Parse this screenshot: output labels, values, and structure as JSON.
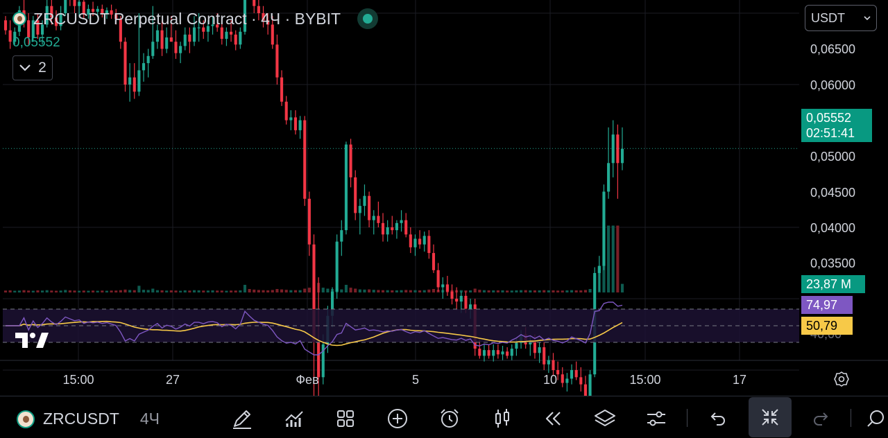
{
  "header": {
    "title": "ZRCUSDT Perpetual Contract · 4Ч · BYBIT",
    "last_price": "0,05552",
    "indicators_count": "2"
  },
  "currency_select": {
    "value": "USDT"
  },
  "price_axis": {
    "labels": [
      "0,06500",
      "0,06000",
      "0,05000",
      "0,04500",
      "0,04000",
      "0,03500"
    ],
    "current_price": "0,05552",
    "countdown": "02:51:41",
    "volume": "23,87 M",
    "rsi_value": "74,97",
    "rsi_ma_value": "50,79",
    "rsi_hidden_label": "40,00"
  },
  "time_axis": {
    "labels": [
      "15:00",
      "27",
      "Фев",
      "5",
      "10",
      "15:00",
      "17"
    ]
  },
  "bottom_bar": {
    "symbol": "ZRCUSDT",
    "timeframe": "4Ч",
    "tools": [
      "drawing-tool",
      "indicators",
      "layouts",
      "add",
      "alert",
      "bar-style",
      "replay",
      "layers",
      "settings",
      "undo",
      "fullscreen-exit",
      "redo"
    ]
  },
  "colors": {
    "up": "#22ab94",
    "down": "#f23645",
    "rsi": "#7e57c2",
    "rsi_ma": "#f7c948",
    "rsi_band": "#1c1233"
  },
  "chart_data": {
    "type": "candlestick",
    "timeframe": "4Ч",
    "price_ticks": [
      0.065,
      0.06,
      0.05,
      0.045,
      0.04,
      0.035
    ],
    "current_price": 0.05552,
    "candles": [
      [
        0.0645,
        0.0648,
        0.0635,
        0.0638
      ],
      [
        0.0638,
        0.0645,
        0.0625,
        0.063
      ],
      [
        0.063,
        0.064,
        0.0628,
        0.0637
      ],
      [
        0.0637,
        0.0655,
        0.0634,
        0.0652
      ],
      [
        0.0652,
        0.0662,
        0.064,
        0.0645
      ],
      [
        0.0645,
        0.065,
        0.0628,
        0.0633
      ],
      [
        0.0633,
        0.0648,
        0.063,
        0.0645
      ],
      [
        0.0645,
        0.065,
        0.0632,
        0.0635
      ],
      [
        0.0635,
        0.0645,
        0.0628,
        0.0642
      ],
      [
        0.0642,
        0.066,
        0.064,
        0.0655
      ],
      [
        0.0655,
        0.0662,
        0.0642,
        0.0647
      ],
      [
        0.0647,
        0.0652,
        0.0638,
        0.0641
      ],
      [
        0.0641,
        0.0655,
        0.0638,
        0.065
      ],
      [
        0.065,
        0.067,
        0.0648,
        0.0665
      ],
      [
        0.0665,
        0.0672,
        0.0655,
        0.066
      ],
      [
        0.066,
        0.0665,
        0.065,
        0.0655
      ],
      [
        0.0655,
        0.0662,
        0.0648,
        0.0658
      ],
      [
        0.0658,
        0.066,
        0.0646,
        0.0649
      ],
      [
        0.0649,
        0.0656,
        0.0646,
        0.0653
      ],
      [
        0.0653,
        0.0658,
        0.0648,
        0.0651
      ],
      [
        0.0651,
        0.0655,
        0.0647,
        0.0653
      ],
      [
        0.0653,
        0.0656,
        0.0647,
        0.065
      ],
      [
        0.065,
        0.0654,
        0.0646,
        0.0652
      ],
      [
        0.0652,
        0.0656,
        0.0646,
        0.0649
      ],
      [
        0.0649,
        0.0653,
        0.0642,
        0.0646
      ],
      [
        0.0646,
        0.0648,
        0.0625,
        0.063
      ],
      [
        0.063,
        0.0633,
        0.0595,
        0.06
      ],
      [
        0.06,
        0.0615,
        0.0588,
        0.0605
      ],
      [
        0.0605,
        0.0615,
        0.059,
        0.0595
      ],
      [
        0.0595,
        0.065,
        0.0592,
        0.061
      ],
      [
        0.061,
        0.0622,
        0.0602,
        0.0615
      ],
      [
        0.0615,
        0.0625,
        0.0605,
        0.062
      ],
      [
        0.062,
        0.0655,
        0.0618,
        0.063
      ],
      [
        0.063,
        0.0642,
        0.0625,
        0.0638
      ],
      [
        0.0638,
        0.0645,
        0.062,
        0.0625
      ],
      [
        0.0625,
        0.064,
        0.0622,
        0.0633
      ],
      [
        0.0633,
        0.0648,
        0.063,
        0.063
      ],
      [
        0.063,
        0.0638,
        0.0618,
        0.0622
      ],
      [
        0.0622,
        0.063,
        0.0615,
        0.0627
      ],
      [
        0.0627,
        0.064,
        0.0624,
        0.0635
      ],
      [
        0.0635,
        0.064,
        0.0622,
        0.063
      ],
      [
        0.063,
        0.0648,
        0.0627,
        0.064
      ],
      [
        0.064,
        0.065,
        0.063,
        0.064
      ],
      [
        0.064,
        0.0645,
        0.0632,
        0.0637
      ],
      [
        0.0637,
        0.0645,
        0.063,
        0.0641
      ],
      [
        0.0641,
        0.0648,
        0.0635,
        0.0642
      ],
      [
        0.0642,
        0.065,
        0.0637,
        0.064
      ],
      [
        0.064,
        0.0645,
        0.0628,
        0.0632
      ],
      [
        0.0632,
        0.064,
        0.0627,
        0.0637
      ],
      [
        0.0637,
        0.0645,
        0.063,
        0.0635
      ],
      [
        0.0635,
        0.0638,
        0.0624,
        0.0628
      ],
      [
        0.0628,
        0.064,
        0.0625,
        0.0637
      ],
      [
        0.0637,
        0.0682,
        0.0635,
        0.0675
      ],
      [
        0.0675,
        0.0678,
        0.066,
        0.0665
      ],
      [
        0.0665,
        0.0668,
        0.065,
        0.0655
      ],
      [
        0.0655,
        0.066,
        0.0645,
        0.065
      ],
      [
        0.065,
        0.0655,
        0.064,
        0.0645
      ],
      [
        0.0645,
        0.065,
        0.0635,
        0.0642
      ],
      [
        0.0642,
        0.0648,
        0.0625,
        0.0628
      ],
      [
        0.0628,
        0.0635,
        0.06,
        0.0605
      ],
      [
        0.0605,
        0.061,
        0.0585,
        0.0588
      ],
      [
        0.0588,
        0.0592,
        0.0572,
        0.0575
      ],
      [
        0.0575,
        0.0582,
        0.0568,
        0.0577
      ],
      [
        0.0577,
        0.0582,
        0.0565,
        0.0568
      ],
      [
        0.0568,
        0.0578,
        0.0562,
        0.0575
      ],
      [
        0.0575,
        0.0578,
        0.0515,
        0.052
      ],
      [
        0.052,
        0.0525,
        0.048,
        0.0488
      ],
      [
        0.0488,
        0.0495,
        0.038,
        0.042
      ],
      [
        0.042,
        0.0465,
        0.038,
        0.0395
      ],
      [
        0.0395,
        0.0425,
        0.039,
        0.0418
      ],
      [
        0.0418,
        0.0445,
        0.0412,
        0.0438
      ],
      [
        0.0438,
        0.0458,
        0.043,
        0.0455
      ],
      [
        0.0455,
        0.0495,
        0.045,
        0.049
      ],
      [
        0.049,
        0.0505,
        0.048,
        0.0498
      ],
      [
        0.0498,
        0.056,
        0.0495,
        0.0558
      ],
      [
        0.0558,
        0.0562,
        0.0528,
        0.0535
      ],
      [
        0.0535,
        0.054,
        0.0505,
        0.051
      ],
      [
        0.051,
        0.052,
        0.0495,
        0.0515
      ],
      [
        0.0515,
        0.053,
        0.0508,
        0.0522
      ],
      [
        0.0522,
        0.0525,
        0.05,
        0.0505
      ],
      [
        0.0505,
        0.0512,
        0.0495,
        0.0508
      ],
      [
        0.0508,
        0.0518,
        0.05,
        0.0503
      ],
      [
        0.0503,
        0.051,
        0.049,
        0.0495
      ],
      [
        0.0495,
        0.0505,
        0.049,
        0.05
      ],
      [
        0.05,
        0.0508,
        0.0495,
        0.0498
      ],
      [
        0.0498,
        0.0505,
        0.0492,
        0.0503
      ],
      [
        0.0503,
        0.0512,
        0.0497,
        0.0505
      ],
      [
        0.0505,
        0.051,
        0.0493,
        0.0495
      ],
      [
        0.0495,
        0.05,
        0.0482,
        0.0486
      ],
      [
        0.0486,
        0.0495,
        0.048,
        0.0492
      ],
      [
        0.0492,
        0.0498,
        0.0485,
        0.0488
      ],
      [
        0.0488,
        0.0497,
        0.0483,
        0.0494
      ],
      [
        0.0494,
        0.0498,
        0.0478,
        0.0482
      ],
      [
        0.0482,
        0.0488,
        0.0468,
        0.047
      ],
      [
        0.047,
        0.0475,
        0.0455,
        0.0458
      ],
      [
        0.0458,
        0.0465,
        0.045,
        0.046
      ],
      [
        0.046,
        0.0466,
        0.0452,
        0.0455
      ],
      [
        0.0455,
        0.046,
        0.0446,
        0.045
      ],
      [
        0.045,
        0.0458,
        0.0442,
        0.0448
      ],
      [
        0.0448,
        0.0455,
        0.044,
        0.0452
      ],
      [
        0.0452,
        0.0455,
        0.044,
        0.0443
      ],
      [
        0.0443,
        0.045,
        0.0436,
        0.0446
      ],
      [
        0.0446,
        0.045,
        0.041,
        0.0415
      ],
      [
        0.0415,
        0.0422,
        0.0408,
        0.041
      ],
      [
        0.041,
        0.0418,
        0.0406,
        0.0414
      ],
      [
        0.0414,
        0.0418,
        0.0408,
        0.041
      ],
      [
        0.041,
        0.0418,
        0.0406,
        0.0414
      ],
      [
        0.0414,
        0.0418,
        0.0408,
        0.0411
      ],
      [
        0.0411,
        0.0417,
        0.0407,
        0.0413
      ],
      [
        0.0413,
        0.0416,
        0.0408,
        0.041
      ],
      [
        0.041,
        0.0418,
        0.0407,
        0.0415
      ],
      [
        0.0415,
        0.0422,
        0.041,
        0.0419
      ],
      [
        0.0419,
        0.0428,
        0.0415,
        0.0425
      ],
      [
        0.0425,
        0.043,
        0.0415,
        0.0418
      ],
      [
        0.0418,
        0.0424,
        0.041,
        0.042
      ],
      [
        0.042,
        0.0425,
        0.0408,
        0.0412
      ],
      [
        0.0412,
        0.042,
        0.0405,
        0.0416
      ],
      [
        0.0416,
        0.042,
        0.04,
        0.0404
      ],
      [
        0.0404,
        0.041,
        0.0398,
        0.0407
      ],
      [
        0.0407,
        0.0412,
        0.0396,
        0.04
      ],
      [
        0.04,
        0.0406,
        0.0393,
        0.0397
      ],
      [
        0.0397,
        0.0402,
        0.0388,
        0.0391
      ],
      [
        0.0391,
        0.0398,
        0.0385,
        0.0394
      ],
      [
        0.0394,
        0.0404,
        0.039,
        0.04
      ],
      [
        0.04,
        0.0406,
        0.0393,
        0.0395
      ],
      [
        0.0395,
        0.0402,
        0.0385,
        0.039
      ],
      [
        0.039,
        0.0396,
        0.0375,
        0.0382
      ],
      [
        0.0382,
        0.04,
        0.038,
        0.0397
      ],
      [
        0.0397,
        0.0472,
        0.0395,
        0.0468
      ],
      [
        0.0468,
        0.048,
        0.0455,
        0.0473
      ],
      [
        0.0473,
        0.053,
        0.047,
        0.0525
      ],
      [
        0.0525,
        0.057,
        0.052,
        0.0545
      ],
      [
        0.0545,
        0.0575,
        0.0535,
        0.0565
      ],
      [
        0.0565,
        0.0572,
        0.052,
        0.0545
      ],
      [
        0.0545,
        0.057,
        0.054,
        0.0555
      ]
    ],
    "volumes": [
      1.0,
      1.1,
      0.9,
      1.0,
      1.2,
      1.0,
      0.9,
      1.1,
      1.0,
      1.2,
      1.0,
      0.9,
      1.0,
      1.3,
      1.1,
      1.0,
      0.9,
      1.0,
      0.9,
      1.0,
      0.9,
      1.0,
      0.9,
      1.0,
      1.0,
      1.2,
      1.5,
      1.3,
      1.2,
      3.5,
      1.4,
      1.3,
      2.0,
      1.2,
      1.1,
      1.0,
      1.1,
      1.0,
      0.9,
      1.1,
      1.0,
      1.2,
      1.1,
      1.0,
      1.0,
      1.1,
      1.0,
      1.0,
      0.9,
      1.0,
      1.0,
      1.1,
      4.0,
      1.8,
      1.5,
      1.3,
      1.2,
      1.1,
      1.3,
      1.8,
      1.6,
      1.4,
      1.2,
      1.2,
      1.2,
      2.0,
      2.5,
      7.0,
      5.0,
      2.5,
      2.0,
      1.8,
      2.0,
      1.6,
      4.0,
      2.5,
      2.0,
      1.6,
      1.5,
      1.6,
      1.4,
      1.3,
      1.2,
      1.2,
      1.1,
      1.1,
      1.2,
      1.3,
      1.2,
      1.2,
      1.1,
      1.2,
      1.5,
      1.8,
      1.4,
      1.3,
      1.3,
      1.2,
      1.2,
      1.2,
      1.1,
      1.1,
      2.0,
      1.4,
      1.2,
      1.1,
      1.1,
      1.1,
      1.1,
      1.0,
      1.0,
      1.1,
      1.2,
      1.2,
      1.1,
      1.1,
      1.1,
      1.2,
      1.1,
      1.1,
      1.0,
      1.0,
      1.1,
      1.2,
      1.1,
      1.1,
      1.3,
      1.8,
      9.0,
      13.0,
      37.0,
      35.0,
      35.0,
      35.0,
      4.5
    ],
    "volume_last": 23.87,
    "volume_unit": "M",
    "rsi": {
      "value": 74.97,
      "ma_value": 50.79,
      "upper_band": 70,
      "lower_band": 30,
      "middle_line": 50
    }
  }
}
